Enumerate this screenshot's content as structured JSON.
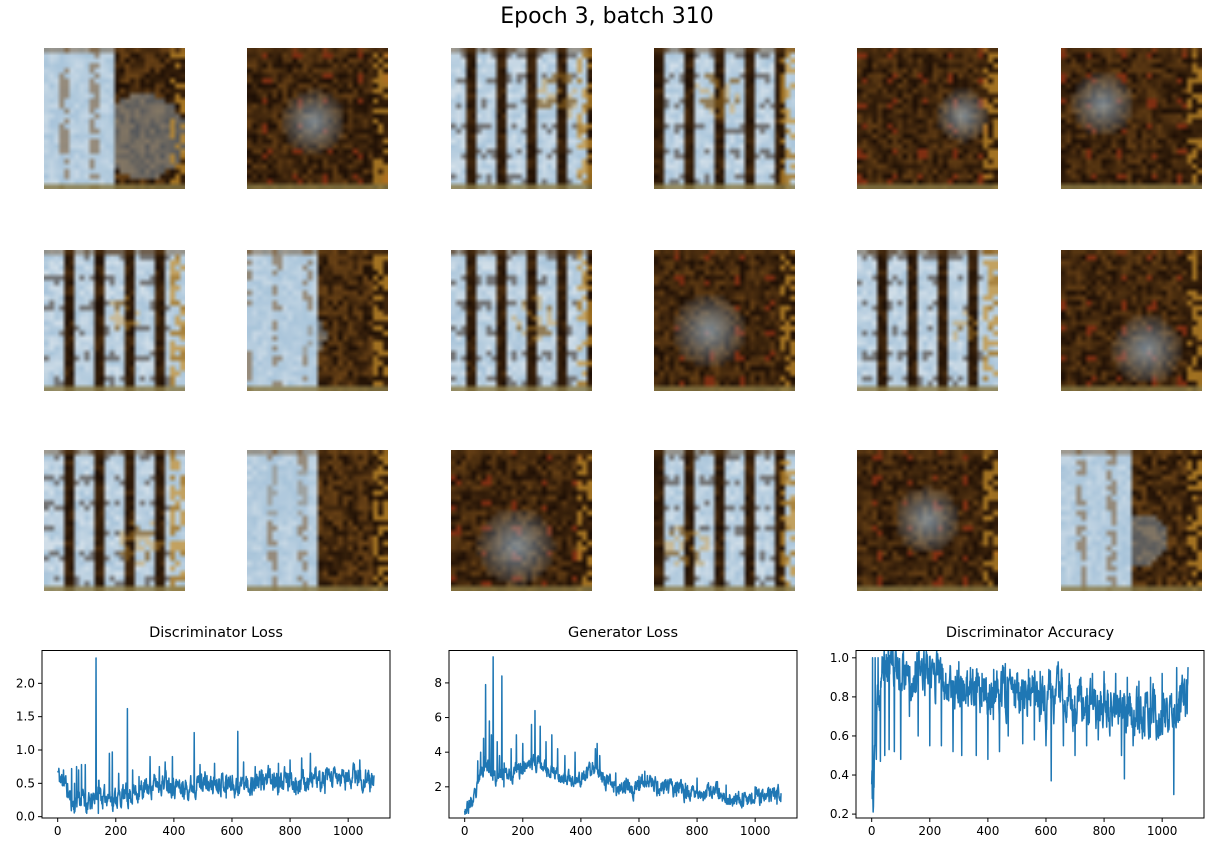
{
  "figure": {
    "suptitle": "Epoch 3, batch 310"
  },
  "samples": {
    "description": "18 generated sample images (GAN output), 3 rows x 6 columns",
    "rows": 3,
    "cols": 6,
    "palette": {
      "dark": "#1c0e05",
      "brown": "#6b4316",
      "gold": "#c08a28",
      "blue": "#a8c4da",
      "white": "#e6ecf0",
      "red": "#9a2a12",
      "edge": "#8a7a45"
    },
    "themes": [
      "mixed",
      "dark",
      "blue",
      "blue",
      "dark",
      "dark",
      "blue",
      "mixed",
      "blue",
      "dark",
      "blue",
      "dark",
      "blue",
      "mixed",
      "dark",
      "blue",
      "dark",
      "mixed"
    ]
  },
  "chart_data": [
    {
      "type": "line",
      "title": "Discriminator Loss",
      "xlabel": "",
      "ylabel": "",
      "xlim": [
        -54,
        1144
      ],
      "ylim": [
        -0.02,
        2.5
      ],
      "xticks": [
        0,
        200,
        400,
        600,
        800,
        1000
      ],
      "yticks": [
        0.0,
        0.5,
        1.0,
        1.5,
        2.0
      ],
      "ytick_labels": [
        "0.0",
        "0.5",
        "1.0",
        "1.5",
        "2.0"
      ],
      "grid": false,
      "color": "#1f77b4",
      "n_points": 1090,
      "anchors": [
        [
          0,
          0.68
        ],
        [
          10,
          0.52
        ],
        [
          20,
          0.6
        ],
        [
          30,
          0.45
        ],
        [
          40,
          0.3
        ],
        [
          50,
          0.22
        ],
        [
          60,
          0.15
        ],
        [
          70,
          0.35
        ],
        [
          80,
          0.25
        ],
        [
          90,
          0.3
        ],
        [
          100,
          0.22
        ],
        [
          110,
          0.18
        ],
        [
          120,
          0.22
        ],
        [
          130,
          0.3
        ],
        [
          140,
          0.45
        ],
        [
          150,
          0.3
        ],
        [
          160,
          0.25
        ],
        [
          170,
          0.35
        ],
        [
          180,
          0.3
        ],
        [
          190,
          0.25
        ],
        [
          200,
          0.3
        ],
        [
          220,
          0.28
        ],
        [
          240,
          0.32
        ],
        [
          260,
          0.35
        ],
        [
          280,
          0.4
        ],
        [
          300,
          0.38
        ],
        [
          320,
          0.45
        ],
        [
          340,
          0.5
        ],
        [
          360,
          0.52
        ],
        [
          380,
          0.55
        ],
        [
          400,
          0.48
        ],
        [
          420,
          0.45
        ],
        [
          440,
          0.42
        ],
        [
          460,
          0.48
        ],
        [
          480,
          0.5
        ],
        [
          500,
          0.55
        ],
        [
          520,
          0.45
        ],
        [
          540,
          0.5
        ],
        [
          560,
          0.55
        ],
        [
          580,
          0.52
        ],
        [
          600,
          0.5
        ],
        [
          620,
          0.45
        ],
        [
          640,
          0.5
        ],
        [
          660,
          0.48
        ],
        [
          680,
          0.52
        ],
        [
          700,
          0.55
        ],
        [
          720,
          0.58
        ],
        [
          740,
          0.52
        ],
        [
          760,
          0.5
        ],
        [
          780,
          0.55
        ],
        [
          800,
          0.52
        ],
        [
          820,
          0.55
        ],
        [
          840,
          0.5
        ],
        [
          860,
          0.55
        ],
        [
          880,
          0.58
        ],
        [
          900,
          0.52
        ],
        [
          920,
          0.55
        ],
        [
          940,
          0.58
        ],
        [
          960,
          0.55
        ],
        [
          980,
          0.6
        ],
        [
          1000,
          0.58
        ],
        [
          1020,
          0.62
        ],
        [
          1040,
          0.58
        ],
        [
          1060,
          0.55
        ],
        [
          1080,
          0.52
        ],
        [
          1090,
          0.45
        ]
      ],
      "spikes": [
        [
          20,
          0.7
        ],
        [
          48,
          0.72
        ],
        [
          58,
          0.5
        ],
        [
          65,
          0.75
        ],
        [
          72,
          0.7
        ],
        [
          82,
          0.78
        ],
        [
          95,
          0.78
        ],
        [
          100,
          0.05
        ],
        [
          132,
          2.38
        ],
        [
          140,
          0.05
        ],
        [
          178,
          0.95
        ],
        [
          188,
          0.97
        ],
        [
          210,
          0.65
        ],
        [
          225,
          0.48
        ],
        [
          240,
          1.62
        ],
        [
          258,
          0.7
        ],
        [
          280,
          0.6
        ],
        [
          300,
          0.55
        ],
        [
          318,
          0.9
        ],
        [
          350,
          0.75
        ],
        [
          370,
          0.82
        ],
        [
          395,
          0.9
        ],
        [
          430,
          0.3
        ],
        [
          470,
          1.26
        ],
        [
          490,
          0.78
        ],
        [
          540,
          0.8
        ],
        [
          580,
          0.28
        ],
        [
          620,
          1.28
        ],
        [
          640,
          0.82
        ],
        [
          680,
          0.75
        ],
        [
          700,
          0.4
        ],
        [
          760,
          0.8
        ],
        [
          800,
          0.85
        ],
        [
          820,
          0.33
        ],
        [
          840,
          0.88
        ],
        [
          870,
          0.95
        ],
        [
          920,
          0.35
        ],
        [
          990,
          0.4
        ],
        [
          1040,
          0.85
        ],
        [
          1060,
          0.7
        ],
        [
          1090,
          1.08
        ],
        [
          1100,
          0.75
        ]
      ],
      "noise": 0.12,
      "seed": 11
    },
    {
      "type": "line",
      "title": "Generator Loss",
      "xlabel": "",
      "ylabel": "",
      "xlim": [
        -54,
        1144
      ],
      "ylim": [
        0.2,
        9.9
      ],
      "xticks": [
        0,
        200,
        400,
        600,
        800,
        1000
      ],
      "yticks": [
        2,
        4,
        6,
        8
      ],
      "ytick_labels": [
        "2",
        "4",
        "6",
        "8"
      ],
      "grid": false,
      "color": "#1f77b4",
      "n_points": 1090,
      "anchors": [
        [
          0,
          0.9
        ],
        [
          10,
          0.8
        ],
        [
          20,
          1.0
        ],
        [
          30,
          1.2
        ],
        [
          40,
          1.5
        ],
        [
          50,
          2.5
        ],
        [
          60,
          3.0
        ],
        [
          70,
          3.5
        ],
        [
          80,
          3.2
        ],
        [
          90,
          3.0
        ],
        [
          100,
          2.5
        ],
        [
          110,
          2.2
        ],
        [
          120,
          2.8
        ],
        [
          130,
          3.0
        ],
        [
          140,
          3.2
        ],
        [
          150,
          2.8
        ],
        [
          160,
          2.5
        ],
        [
          170,
          2.8
        ],
        [
          180,
          3.0
        ],
        [
          190,
          2.9
        ],
        [
          200,
          3.2
        ],
        [
          220,
          3.3
        ],
        [
          240,
          3.5
        ],
        [
          260,
          3.3
        ],
        [
          280,
          3.0
        ],
        [
          300,
          3.0
        ],
        [
          320,
          2.8
        ],
        [
          340,
          2.5
        ],
        [
          360,
          2.4
        ],
        [
          380,
          2.2
        ],
        [
          400,
          2.5
        ],
        [
          420,
          2.7
        ],
        [
          440,
          2.9
        ],
        [
          460,
          3.0
        ],
        [
          480,
          2.5
        ],
        [
          500,
          2.2
        ],
        [
          520,
          2.0
        ],
        [
          540,
          2.1
        ],
        [
          560,
          2.0
        ],
        [
          580,
          1.8
        ],
        [
          600,
          2.2
        ],
        [
          620,
          2.4
        ],
        [
          640,
          2.2
        ],
        [
          660,
          2.0
        ],
        [
          680,
          2.0
        ],
        [
          700,
          2.0
        ],
        [
          720,
          1.9
        ],
        [
          740,
          1.8
        ],
        [
          760,
          1.6
        ],
        [
          780,
          1.7
        ],
        [
          800,
          1.8
        ],
        [
          820,
          1.5
        ],
        [
          840,
          1.6
        ],
        [
          860,
          1.7
        ],
        [
          880,
          1.5
        ],
        [
          900,
          1.4
        ],
        [
          920,
          1.3
        ],
        [
          940,
          1.2
        ],
        [
          960,
          1.4
        ],
        [
          980,
          1.3
        ],
        [
          1000,
          1.5
        ],
        [
          1020,
          1.4
        ],
        [
          1040,
          1.3
        ],
        [
          1060,
          1.5
        ],
        [
          1080,
          1.6
        ],
        [
          1090,
          1.7
        ]
      ],
      "spikes": [
        [
          5,
          0.55
        ],
        [
          45,
          3.5
        ],
        [
          55,
          4.0
        ],
        [
          65,
          4.8
        ],
        [
          72,
          7.9
        ],
        [
          85,
          5.8
        ],
        [
          92,
          5.0
        ],
        [
          98,
          9.5
        ],
        [
          106,
          2.2
        ],
        [
          112,
          4.6
        ],
        [
          120,
          3.8
        ],
        [
          128,
          8.4
        ],
        [
          135,
          2.0
        ],
        [
          160,
          4.2
        ],
        [
          178,
          5.0
        ],
        [
          200,
          4.5
        ],
        [
          230,
          5.6
        ],
        [
          242,
          6.4
        ],
        [
          260,
          5.5
        ],
        [
          280,
          4.6
        ],
        [
          300,
          5.0
        ],
        [
          320,
          4.2
        ],
        [
          345,
          3.8
        ],
        [
          380,
          4.0
        ],
        [
          450,
          4.2
        ],
        [
          456,
          4.5
        ],
        [
          465,
          3.8
        ],
        [
          520,
          2.8
        ],
        [
          600,
          2.6
        ],
        [
          620,
          2.9
        ],
        [
          640,
          2.6
        ],
        [
          700,
          2.4
        ],
        [
          760,
          2.2
        ],
        [
          800,
          2.5
        ],
        [
          870,
          2.3
        ],
        [
          900,
          2.1
        ],
        [
          950,
          1.0
        ],
        [
          1000,
          2.0
        ],
        [
          1060,
          1.9
        ],
        [
          1075,
          1.0
        ]
      ],
      "noise": 0.35,
      "seed": 23
    },
    {
      "type": "line",
      "title": "Discriminator Accuracy",
      "xlabel": "",
      "ylabel": "",
      "xlim": [
        -54,
        1144
      ],
      "ylim": [
        0.18,
        1.04
      ],
      "xticks": [
        0,
        200,
        400,
        600,
        800,
        1000
      ],
      "yticks": [
        0.2,
        0.4,
        0.6,
        0.8,
        1.0
      ],
      "ytick_labels": [
        "0.2",
        "0.4",
        "0.6",
        "0.8",
        "1.0"
      ],
      "grid": false,
      "color": "#1f77b4",
      "n_points": 1090,
      "anchors": [
        [
          0,
          0.35
        ],
        [
          5,
          0.25
        ],
        [
          10,
          0.5
        ],
        [
          20,
          0.7
        ],
        [
          30,
          0.85
        ],
        [
          40,
          0.95
        ],
        [
          60,
          0.98
        ],
        [
          80,
          0.97
        ],
        [
          100,
          0.95
        ],
        [
          120,
          0.93
        ],
        [
          140,
          0.92
        ],
        [
          160,
          0.93
        ],
        [
          180,
          0.92
        ],
        [
          200,
          0.9
        ],
        [
          220,
          0.91
        ],
        [
          240,
          0.9
        ],
        [
          260,
          0.88
        ],
        [
          280,
          0.87
        ],
        [
          300,
          0.85
        ],
        [
          320,
          0.85
        ],
        [
          340,
          0.82
        ],
        [
          360,
          0.8
        ],
        [
          380,
          0.78
        ],
        [
          400,
          0.78
        ],
        [
          420,
          0.8
        ],
        [
          440,
          0.82
        ],
        [
          460,
          0.85
        ],
        [
          480,
          0.83
        ],
        [
          500,
          0.8
        ],
        [
          520,
          0.78
        ],
        [
          540,
          0.8
        ],
        [
          560,
          0.82
        ],
        [
          580,
          0.8
        ],
        [
          600,
          0.78
        ],
        [
          620,
          0.8
        ],
        [
          640,
          0.82
        ],
        [
          660,
          0.8
        ],
        [
          680,
          0.78
        ],
        [
          700,
          0.77
        ],
        [
          720,
          0.75
        ],
        [
          740,
          0.76
        ],
        [
          760,
          0.74
        ],
        [
          780,
          0.75
        ],
        [
          800,
          0.76
        ],
        [
          820,
          0.74
        ],
        [
          840,
          0.75
        ],
        [
          860,
          0.72
        ],
        [
          880,
          0.74
        ],
        [
          900,
          0.72
        ],
        [
          920,
          0.73
        ],
        [
          940,
          0.72
        ],
        [
          960,
          0.7
        ],
        [
          980,
          0.72
        ],
        [
          1000,
          0.7
        ],
        [
          1020,
          0.72
        ],
        [
          1040,
          0.72
        ],
        [
          1060,
          0.75
        ],
        [
          1080,
          0.78
        ],
        [
          1090,
          0.85
        ]
      ],
      "spikes": [
        [
          3,
          1.0
        ],
        [
          6,
          0.24
        ],
        [
          12,
          1.0
        ],
        [
          16,
          0.48
        ],
        [
          22,
          1.0
        ],
        [
          30,
          0.47
        ],
        [
          40,
          1.0
        ],
        [
          45,
          0.5
        ],
        [
          55,
          1.0
        ],
        [
          60,
          0.53
        ],
        [
          70,
          1.0
        ],
        [
          78,
          0.52
        ],
        [
          90,
          1.0
        ],
        [
          100,
          0.48
        ],
        [
          120,
          0.98
        ],
        [
          130,
          0.7
        ],
        [
          150,
          0.98
        ],
        [
          160,
          0.6
        ],
        [
          190,
          0.99
        ],
        [
          200,
          0.55
        ],
        [
          230,
          0.98
        ],
        [
          240,
          0.55
        ],
        [
          270,
          0.96
        ],
        [
          280,
          0.52
        ],
        [
          300,
          0.98
        ],
        [
          310,
          0.5
        ],
        [
          340,
          0.95
        ],
        [
          360,
          0.5
        ],
        [
          380,
          0.92
        ],
        [
          400,
          0.48
        ],
        [
          420,
          0.94
        ],
        [
          440,
          0.52
        ],
        [
          460,
          0.97
        ],
        [
          470,
          0.6
        ],
        [
          500,
          0.92
        ],
        [
          520,
          0.56
        ],
        [
          540,
          0.94
        ],
        [
          560,
          0.58
        ],
        [
          580,
          0.93
        ],
        [
          600,
          0.55
        ],
        [
          610,
          0.94
        ],
        [
          618,
          0.37
        ],
        [
          640,
          0.92
        ],
        [
          660,
          0.55
        ],
        [
          680,
          0.92
        ],
        [
          700,
          0.5
        ],
        [
          720,
          0.9
        ],
        [
          740,
          0.55
        ],
        [
          760,
          0.92
        ],
        [
          780,
          0.58
        ],
        [
          800,
          0.93
        ],
        [
          820,
          0.6
        ],
        [
          840,
          0.92
        ],
        [
          860,
          0.5
        ],
        [
          870,
          0.38
        ],
        [
          880,
          0.9
        ],
        [
          900,
          0.55
        ],
        [
          920,
          0.88
        ],
        [
          940,
          0.6
        ],
        [
          960,
          0.9
        ],
        [
          980,
          0.58
        ],
        [
          1000,
          0.92
        ],
        [
          1020,
          0.62
        ],
        [
          1040,
          0.3
        ],
        [
          1050,
          0.95
        ],
        [
          1060,
          0.68
        ],
        [
          1080,
          0.7
        ],
        [
          1090,
          0.86
        ]
      ],
      "noise": 0.09,
      "seed": 37
    }
  ]
}
